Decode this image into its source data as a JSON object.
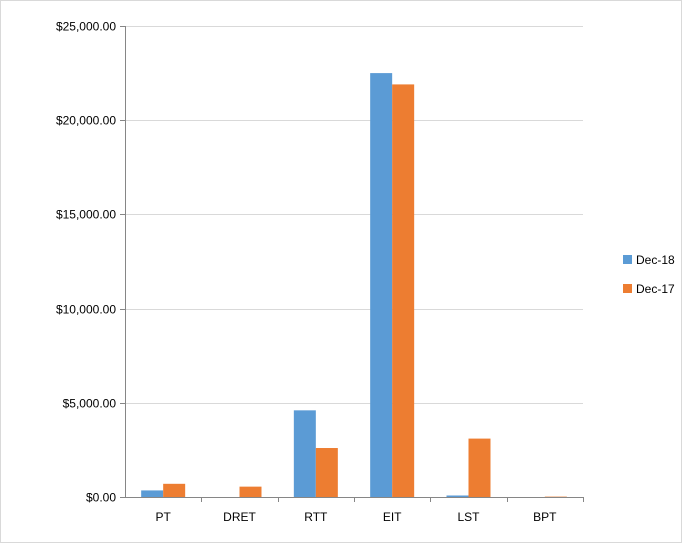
{
  "chart_data": {
    "type": "bar",
    "title": "",
    "xlabel": "",
    "ylabel": "",
    "categories": [
      "PT",
      "DRET",
      "RTT",
      "EIT",
      "LST",
      "BPT"
    ],
    "series": [
      {
        "name": "Dec-18",
        "color": "#5b9bd5",
        "values": [
          350,
          0,
          4600,
          22500,
          80,
          0
        ]
      },
      {
        "name": "Dec-17",
        "color": "#ed7d31",
        "values": [
          700,
          550,
          2600,
          21900,
          3100,
          20
        ]
      }
    ],
    "ylim": [
      0,
      25000
    ],
    "yticks": [
      0,
      5000,
      10000,
      15000,
      20000,
      25000
    ],
    "ytick_labels": [
      "$0.00",
      "$5,000.00",
      "$10,000.00",
      "$15,000.00",
      "$20,000.00",
      "$25,000.00"
    ],
    "grid": true,
    "legend_position": "right"
  }
}
